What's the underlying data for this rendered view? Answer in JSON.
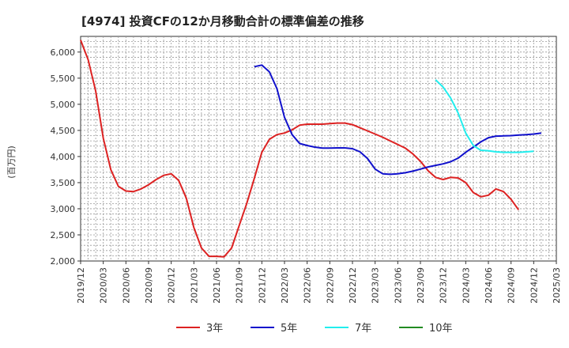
{
  "chart_data": {
    "type": "line",
    "title": "[4974]  投資CFの12か月移動合計の標準偏差の推移",
    "ylabel": "(百万円)",
    "xlabel": "",
    "ylim": [
      2000,
      6300
    ],
    "x_range": [
      "2019-12",
      "2025-03"
    ],
    "yticks": [
      2000,
      2500,
      3000,
      3500,
      4000,
      4500,
      5000,
      5500,
      6000
    ],
    "ytick_labels": [
      "2,000",
      "2,500",
      "3,000",
      "3,500",
      "4,000",
      "4,500",
      "5,000",
      "5,500",
      "6,000"
    ],
    "xticks": [
      "2019-12",
      "2020-03",
      "2020-06",
      "2020-09",
      "2020-12",
      "2021-03",
      "2021-06",
      "2021-09",
      "2021-12",
      "2022-03",
      "2022-06",
      "2022-09",
      "2022-12",
      "2023-03",
      "2023-06",
      "2023-09",
      "2023-12",
      "2024-03",
      "2024-06",
      "2024-09",
      "2024-12",
      "2025-03"
    ],
    "xtick_labels": [
      "2019/12",
      "2020/03",
      "2020/06",
      "2020/09",
      "2020/12",
      "2021/03",
      "2021/06",
      "2021/09",
      "2021/12",
      "2022/03",
      "2022/06",
      "2022/09",
      "2022/12",
      "2023/03",
      "2023/06",
      "2023/09",
      "2023/12",
      "2024/03",
      "2024/06",
      "2024/09",
      "2024/12",
      "2025/03"
    ],
    "grid": true,
    "legend_position": "bottom",
    "series": [
      {
        "name": "3年",
        "color": "#dd2222",
        "start": "2019-12",
        "values": [
          6230,
          5850,
          5250,
          4350,
          3750,
          3430,
          3340,
          3330,
          3380,
          3460,
          3560,
          3640,
          3670,
          3540,
          3200,
          2640,
          2250,
          2090,
          2090,
          2080,
          2250,
          2680,
          3100,
          3580,
          4080,
          4330,
          4420,
          4450,
          4510,
          4600,
          4620,
          4620,
          4620,
          4630,
          4640,
          4640,
          4610,
          4550,
          4490,
          4430,
          4370,
          4300,
          4230,
          4160,
          4050,
          3910,
          3730,
          3600,
          3560,
          3600,
          3590,
          3500,
          3310,
          3230,
          3260,
          3380,
          3330,
          3180,
          2980
        ]
      },
      {
        "name": "5年",
        "color": "#1111cc",
        "start": "2021-11",
        "values": [
          5720,
          5750,
          5620,
          5300,
          4750,
          4420,
          4250,
          4210,
          4180,
          4160,
          4160,
          4165,
          4165,
          4150,
          4090,
          3960,
          3760,
          3670,
          3660,
          3670,
          3690,
          3720,
          3760,
          3800,
          3830,
          3860,
          3900,
          3970,
          4080,
          4180,
          4280,
          4360,
          4390,
          4395,
          4400,
          4410,
          4420,
          4430,
          4450
        ]
      },
      {
        "name": "7年",
        "color": "#22eeee",
        "start": "2023-11",
        "values": [
          5470,
          5330,
          5120,
          4830,
          4450,
          4210,
          4120,
          4110,
          4090,
          4080,
          4080,
          4080,
          4090,
          4100
        ]
      },
      {
        "name": "10年",
        "color": "#228b22",
        "start": "2024-12",
        "values": []
      }
    ]
  }
}
